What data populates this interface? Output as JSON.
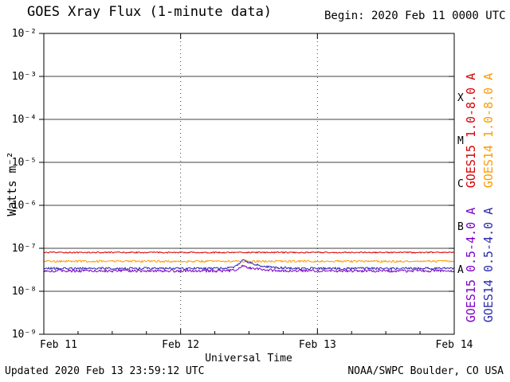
{
  "chart_data": {
    "type": "line",
    "title": "GOES Xray Flux (1-minute data)",
    "begin_label": "Begin: 2020 Feb 11 0000 UTC",
    "xlabel": "Universal Time",
    "ylabel": "Watts m⁻²",
    "x_range_days": 3,
    "x_tick_labels": [
      "Feb 11",
      "Feb 12",
      "Feb 13",
      "Feb 14"
    ],
    "y_tick_exponents": [
      -2,
      -3,
      -4,
      -5,
      -6,
      -7,
      -8,
      -9
    ],
    "y_tick_labels": [
      "10⁻²",
      "10⁻³",
      "10⁻⁴",
      "10⁻⁵",
      "10⁻⁶",
      "10⁻⁷",
      "10⁻⁸",
      "10⁻⁹"
    ],
    "ylim_exponents": [
      -9,
      -2
    ],
    "hline_exponents": [
      -3,
      -4,
      -5,
      -6,
      -7,
      -8
    ],
    "vline_days": [
      1,
      2
    ],
    "flare_class_labels": [
      {
        "label": "X",
        "exponent_mid": -3.5
      },
      {
        "label": "M",
        "exponent_mid": -4.5
      },
      {
        "label": "C",
        "exponent_mid": -5.5
      },
      {
        "label": "B",
        "exponent_mid": -6.5
      },
      {
        "label": "A",
        "exponent_mid": -7.5
      }
    ],
    "series": [
      {
        "name": "GOES15 1.0-8.0 A",
        "color": "#d80000",
        "base_flux_wm2": 8e-08,
        "noise_frac": 0.035
      },
      {
        "name": "GOES14 1.0-8.0 A",
        "color": "#ff9a00",
        "base_flux_wm2": 5e-08,
        "noise_frac": 0.055
      },
      {
        "name": "GOES14 0.5-4.0 A",
        "color": "#2a2ab0",
        "base_flux_wm2": 3.4e-08,
        "noise_frac": 0.065,
        "event": {
          "day": 1.45,
          "peak_add_wm2": 2.1e-08,
          "rise_days": 0.03,
          "decay_days": 0.1
        }
      },
      {
        "name": "GOES15 0.5-4.0 A",
        "color": "#7c00c8",
        "base_flux_wm2": 3e-08,
        "noise_frac": 0.075,
        "event": {
          "day": 1.45,
          "peak_add_wm2": 9e-09,
          "rise_days": 0.03,
          "decay_days": 0.1
        }
      }
    ],
    "legend": [
      {
        "label": "GOES15 1.0-8.0 A",
        "color": "#d80000"
      },
      {
        "label": "GOES14 1.0-8.0 A",
        "color": "#ff9a00"
      },
      {
        "label": "GOES15 0.5-4.0 A",
        "color": "#7c00c8"
      },
      {
        "label": "GOES14 0.5-4.0 A",
        "color": "#2a2ab0"
      }
    ],
    "footer": {
      "updated": "Updated 2020 Feb 13 23:59:12 UTC",
      "credit": "NOAA/SWPC Boulder, CO USA"
    }
  }
}
